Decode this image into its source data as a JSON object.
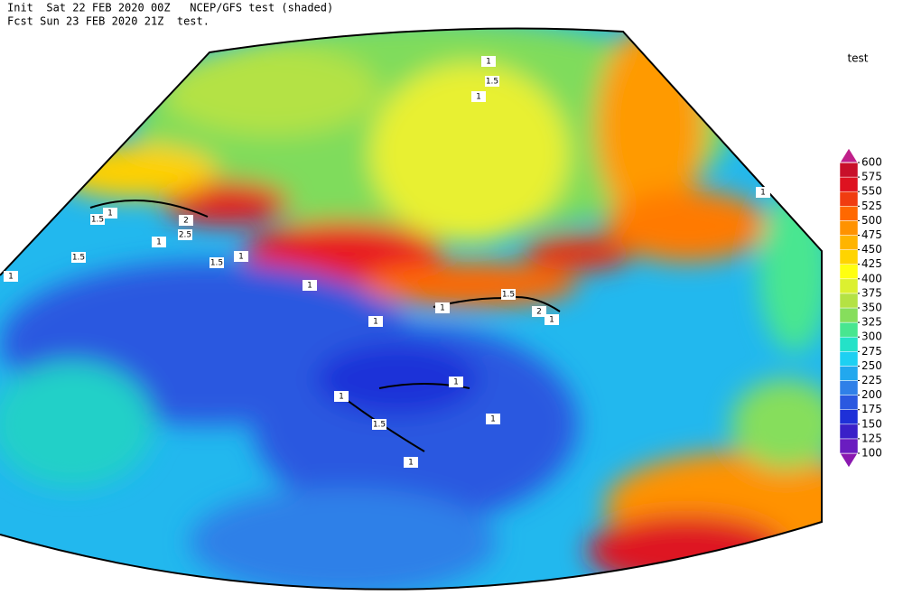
{
  "header": {
    "line1": "Init  Sat 22 FEB 2020 00Z   NCEP/GFS test (shaded)",
    "line2": "Fcst Sun 23 FEB 2020 21Z  test."
  },
  "legend": {
    "title": "test",
    "levels": [
      100,
      125,
      150,
      175,
      200,
      225,
      250,
      275,
      300,
      325,
      350,
      375,
      400,
      425,
      450,
      475,
      500,
      525,
      550,
      575,
      600
    ],
    "colors": [
      "#8a18b0",
      "#6a1cc0",
      "#3a20c8",
      "#1e30d8",
      "#2a58e0",
      "#2f80e8",
      "#22a8ee",
      "#1ed0f2",
      "#24e2c8",
      "#48e690",
      "#86de5c",
      "#b4e244",
      "#dcf030",
      "#ffff10",
      "#ffd400",
      "#ffb400",
      "#ff9200",
      "#ff6800",
      "#f03c10",
      "#de1220",
      "#c8102a",
      "#c0208a"
    ]
  },
  "contour_labels": [
    "1",
    "1.5",
    "1",
    "1",
    "1.5",
    "1",
    "2",
    "2.5",
    "1",
    "1.5",
    "1.5",
    "1",
    "1",
    "1.5",
    "1",
    "2",
    "1",
    "1",
    "1",
    "1",
    "1.5",
    "1",
    "1",
    "1"
  ]
}
